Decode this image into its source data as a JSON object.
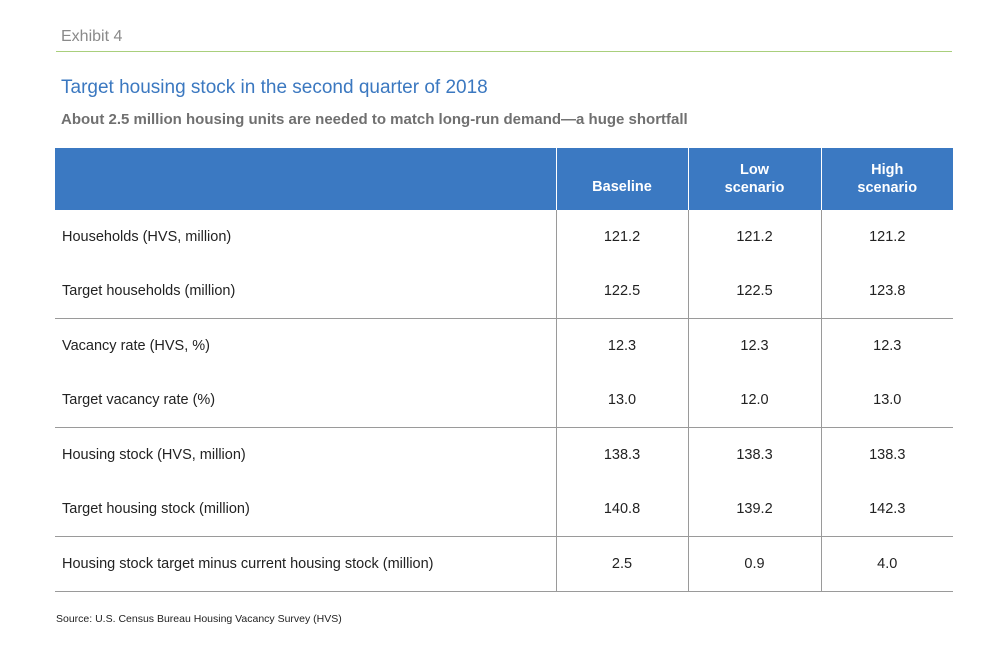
{
  "exhibit": {
    "label": "Exhibit 4",
    "title": "Target housing stock in the second quarter of 2018",
    "subtitle": "About 2.5 million housing units are needed to match long-run demand—a huge shortfall"
  },
  "table": {
    "headers": {
      "label": "",
      "baseline": "Baseline",
      "low": [
        "Low",
        "scenario"
      ],
      "high": [
        "High",
        "scenario"
      ]
    },
    "rows": [
      {
        "label": "Households (HVS, million)",
        "baseline": "121.2",
        "low": "121.2",
        "high": "121.2"
      },
      {
        "label": "Target households (million)",
        "baseline": "122.5",
        "low": "122.5",
        "high": "123.8"
      },
      {
        "label": "Vacancy rate (HVS, %)",
        "baseline": "12.3",
        "low": "12.3",
        "high": "12.3"
      },
      {
        "label": "Target vacancy rate (%)",
        "baseline": "13.0",
        "low": "12.0",
        "high": "13.0"
      },
      {
        "label": "Housing stock (HVS, million)",
        "baseline": "138.3",
        "low": "138.3",
        "high": "138.3"
      },
      {
        "label": "Target housing stock (million)",
        "baseline": "140.8",
        "low": "139.2",
        "high": "142.3"
      },
      {
        "label": "Housing stock target minus current housing stock (million)",
        "baseline": "2.5",
        "low": "0.9",
        "high": "4.0"
      }
    ]
  },
  "source": "Source: U.S. Census Bureau Housing Vacancy Survey (HVS)",
  "colors": {
    "header_bg": "#3b79c2",
    "title": "#3b78c0",
    "exhibit_rule": "#a9cf7c",
    "subtitle": "#707070"
  }
}
